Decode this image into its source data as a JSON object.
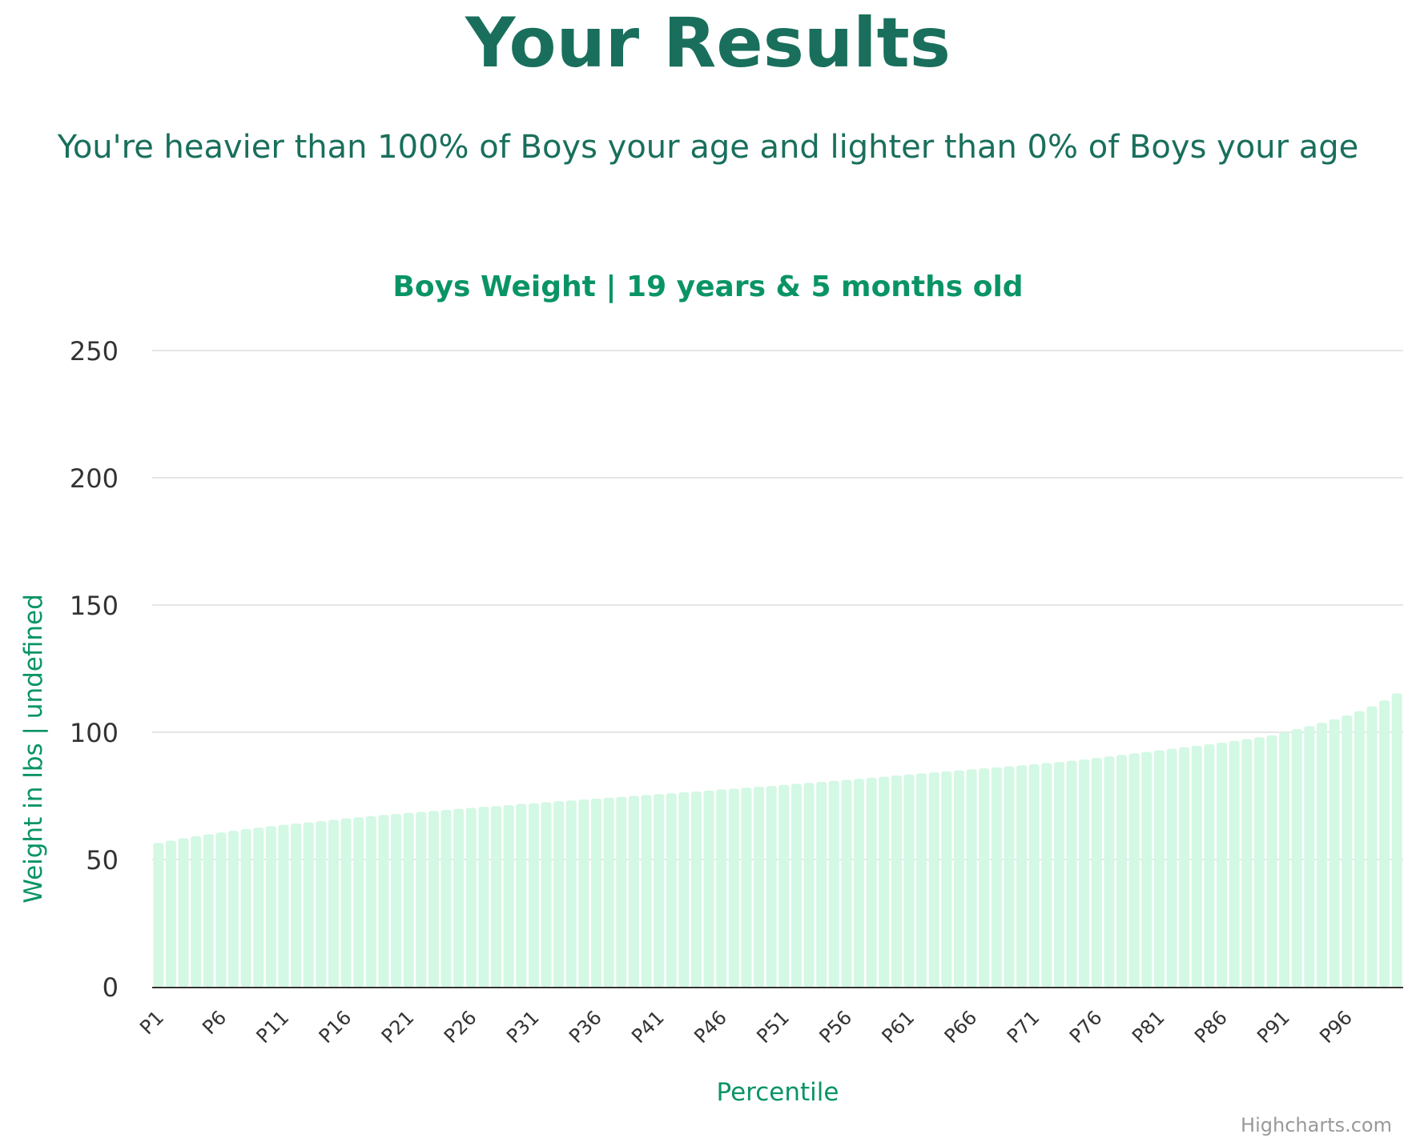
{
  "page": {
    "title": "Your Results",
    "result_text": "You're heavier than 100% of Boys your age and lighter than 0% of Boys your age"
  },
  "colors": {
    "heading": "#196f5c",
    "chart_title": "#0a9466",
    "bar_fill": "#d3f8e4",
    "gridline": "#e6e6e6",
    "axis_line": "#333333",
    "tick_text": "#333333",
    "credits": "#999999"
  },
  "chart_data": {
    "type": "bar",
    "title": "Boys Weight | 19 years & 5 months old",
    "xlabel": "Percentile",
    "ylabel": "Weight in lbs | undefined",
    "ylim": [
      0,
      250
    ],
    "yticks": [
      0,
      50,
      100,
      150,
      200,
      250
    ],
    "grid": true,
    "legend": "none",
    "credits": "Highcharts.com",
    "categories": [
      "P1",
      "P2",
      "P3",
      "P4",
      "P5",
      "P6",
      "P7",
      "P8",
      "P9",
      "P10",
      "P11",
      "P12",
      "P13",
      "P14",
      "P15",
      "P16",
      "P17",
      "P18",
      "P19",
      "P20",
      "P21",
      "P22",
      "P23",
      "P24",
      "P25",
      "P26",
      "P27",
      "P28",
      "P29",
      "P30",
      "P31",
      "P32",
      "P33",
      "P34",
      "P35",
      "P36",
      "P37",
      "P38",
      "P39",
      "P40",
      "P41",
      "P42",
      "P43",
      "P44",
      "P45",
      "P46",
      "P47",
      "P48",
      "P49",
      "P50",
      "P51",
      "P52",
      "P53",
      "P54",
      "P55",
      "P56",
      "P57",
      "P58",
      "P59",
      "P60",
      "P61",
      "P62",
      "P63",
      "P64",
      "P65",
      "P66",
      "P67",
      "P68",
      "P69",
      "P70",
      "P71",
      "P72",
      "P73",
      "P74",
      "P75",
      "P76",
      "P77",
      "P78",
      "P79",
      "P80",
      "P81",
      "P82",
      "P83",
      "P84",
      "P85",
      "P86",
      "P87",
      "P88",
      "P89",
      "P90",
      "P91",
      "P92",
      "P93",
      "P94",
      "P95",
      "P96",
      "P97",
      "P98",
      "P99",
      "P100"
    ],
    "xtick_labels": [
      "P1",
      "P6",
      "P11",
      "P16",
      "P21",
      "P26",
      "P31",
      "P36",
      "P41",
      "P46",
      "P51",
      "P56",
      "P61",
      "P66",
      "P71",
      "P76",
      "P81",
      "P86",
      "P91",
      "P96"
    ],
    "values": [
      56.5,
      57.4,
      58.3,
      59.1,
      59.9,
      60.6,
      61.3,
      61.9,
      62.5,
      63.1,
      63.6,
      64.1,
      64.6,
      65.1,
      65.6,
      66.1,
      66.6,
      67.0,
      67.5,
      67.9,
      68.3,
      68.7,
      69.1,
      69.5,
      69.9,
      70.3,
      70.7,
      71.0,
      71.4,
      71.8,
      72.1,
      72.5,
      72.9,
      73.2,
      73.6,
      73.9,
      74.3,
      74.6,
      75.0,
      75.3,
      75.7,
      76.0,
      76.4,
      76.7,
      77.1,
      77.5,
      77.8,
      78.2,
      78.6,
      78.9,
      79.3,
      79.7,
      80.1,
      80.5,
      80.9,
      81.3,
      81.7,
      82.1,
      82.5,
      83.0,
      83.4,
      83.8,
      84.2,
      84.6,
      85.0,
      85.4,
      85.8,
      86.2,
      86.6,
      87.0,
      87.4,
      87.9,
      88.3,
      88.8,
      89.3,
      89.9,
      90.5,
      91.1,
      91.7,
      92.3,
      92.9,
      93.5,
      94.1,
      94.7,
      95.3,
      95.9,
      96.6,
      97.3,
      98.0,
      98.8,
      100.0,
      101.2,
      102.4,
      103.7,
      105.1,
      106.6,
      108.3,
      110.2,
      112.5,
      115.3
    ]
  }
}
